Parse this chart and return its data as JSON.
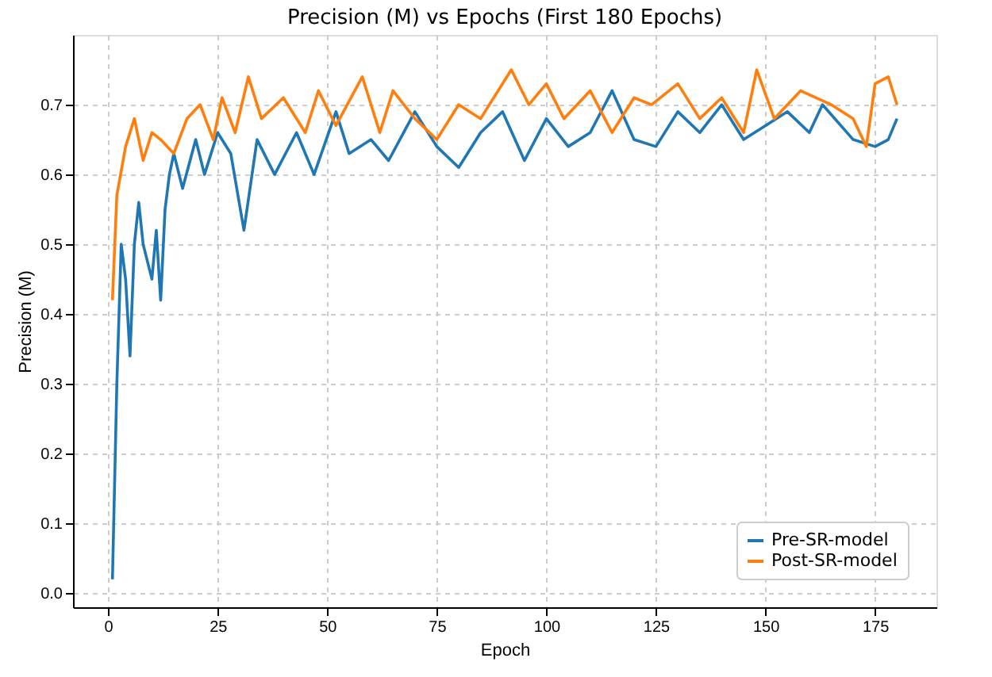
{
  "chart_data": {
    "type": "line",
    "title": "Precision (M) vs Epochs (First 180 Epochs)",
    "xlabel": "Epoch",
    "ylabel": "Precision (M)",
    "xlim": [
      -8,
      189
    ],
    "ylim": [
      -0.02,
      0.8
    ],
    "xticks": [
      0,
      25,
      50,
      75,
      100,
      125,
      150,
      175
    ],
    "yticks": [
      {
        "value": 0,
        "label": "0.0"
      },
      {
        "value": 0.1,
        "label": "0.1"
      },
      {
        "value": 0.2,
        "label": "0.2"
      },
      {
        "value": 0.3,
        "label": "0.3"
      },
      {
        "value": 0.4,
        "label": "0.4"
      },
      {
        "value": 0.5,
        "label": "0.5"
      },
      {
        "value": 0.6,
        "label": "0.6"
      },
      {
        "value": 0.7,
        "label": "0.7"
      }
    ],
    "grid": true,
    "legend": "bottom right",
    "line_style": "solid",
    "marker": "none",
    "series": [
      {
        "name": "Pre-SR-model",
        "color": "#1f77b4",
        "x": [
          1,
          2,
          3,
          4,
          5,
          6,
          7,
          8,
          10,
          11,
          12,
          13,
          14,
          15,
          17,
          20,
          22,
          25,
          28,
          31,
          34,
          38,
          43,
          47,
          52,
          55,
          60,
          64,
          70,
          75,
          80,
          85,
          90,
          95,
          100,
          105,
          110,
          115,
          120,
          125,
          130,
          135,
          140,
          145,
          150,
          155,
          160,
          163,
          170,
          175,
          178,
          180
        ],
        "values": [
          0.02,
          0.3,
          0.5,
          0.45,
          0.34,
          0.5,
          0.56,
          0.5,
          0.45,
          0.52,
          0.42,
          0.55,
          0.6,
          0.63,
          0.58,
          0.65,
          0.6,
          0.66,
          0.63,
          0.52,
          0.65,
          0.6,
          0.66,
          0.6,
          0.69,
          0.63,
          0.65,
          0.62,
          0.69,
          0.64,
          0.61,
          0.66,
          0.69,
          0.62,
          0.68,
          0.64,
          0.66,
          0.72,
          0.65,
          0.64,
          0.69,
          0.66,
          0.7,
          0.65,
          0.67,
          0.69,
          0.66,
          0.7,
          0.65,
          0.64,
          0.65,
          0.68
        ]
      },
      {
        "name": "Post-SR-model",
        "color": "#ff7f0e",
        "x": [
          1,
          2,
          4,
          6,
          8,
          10,
          12,
          15,
          18,
          21,
          24,
          26,
          29,
          32,
          35,
          40,
          45,
          48,
          52,
          58,
          62,
          65,
          70,
          75,
          80,
          85,
          92,
          96,
          100,
          104,
          110,
          115,
          120,
          124,
          130,
          135,
          140,
          145,
          148,
          152,
          158,
          165,
          170,
          173,
          175,
          178,
          180
        ],
        "values": [
          0.42,
          0.57,
          0.64,
          0.68,
          0.62,
          0.66,
          0.65,
          0.63,
          0.68,
          0.7,
          0.65,
          0.71,
          0.66,
          0.74,
          0.68,
          0.71,
          0.66,
          0.72,
          0.67,
          0.74,
          0.66,
          0.72,
          0.68,
          0.65,
          0.7,
          0.68,
          0.75,
          0.7,
          0.73,
          0.68,
          0.72,
          0.66,
          0.71,
          0.7,
          0.73,
          0.68,
          0.71,
          0.66,
          0.75,
          0.68,
          0.72,
          0.7,
          0.68,
          0.64,
          0.73,
          0.74,
          0.7
        ]
      }
    ]
  }
}
